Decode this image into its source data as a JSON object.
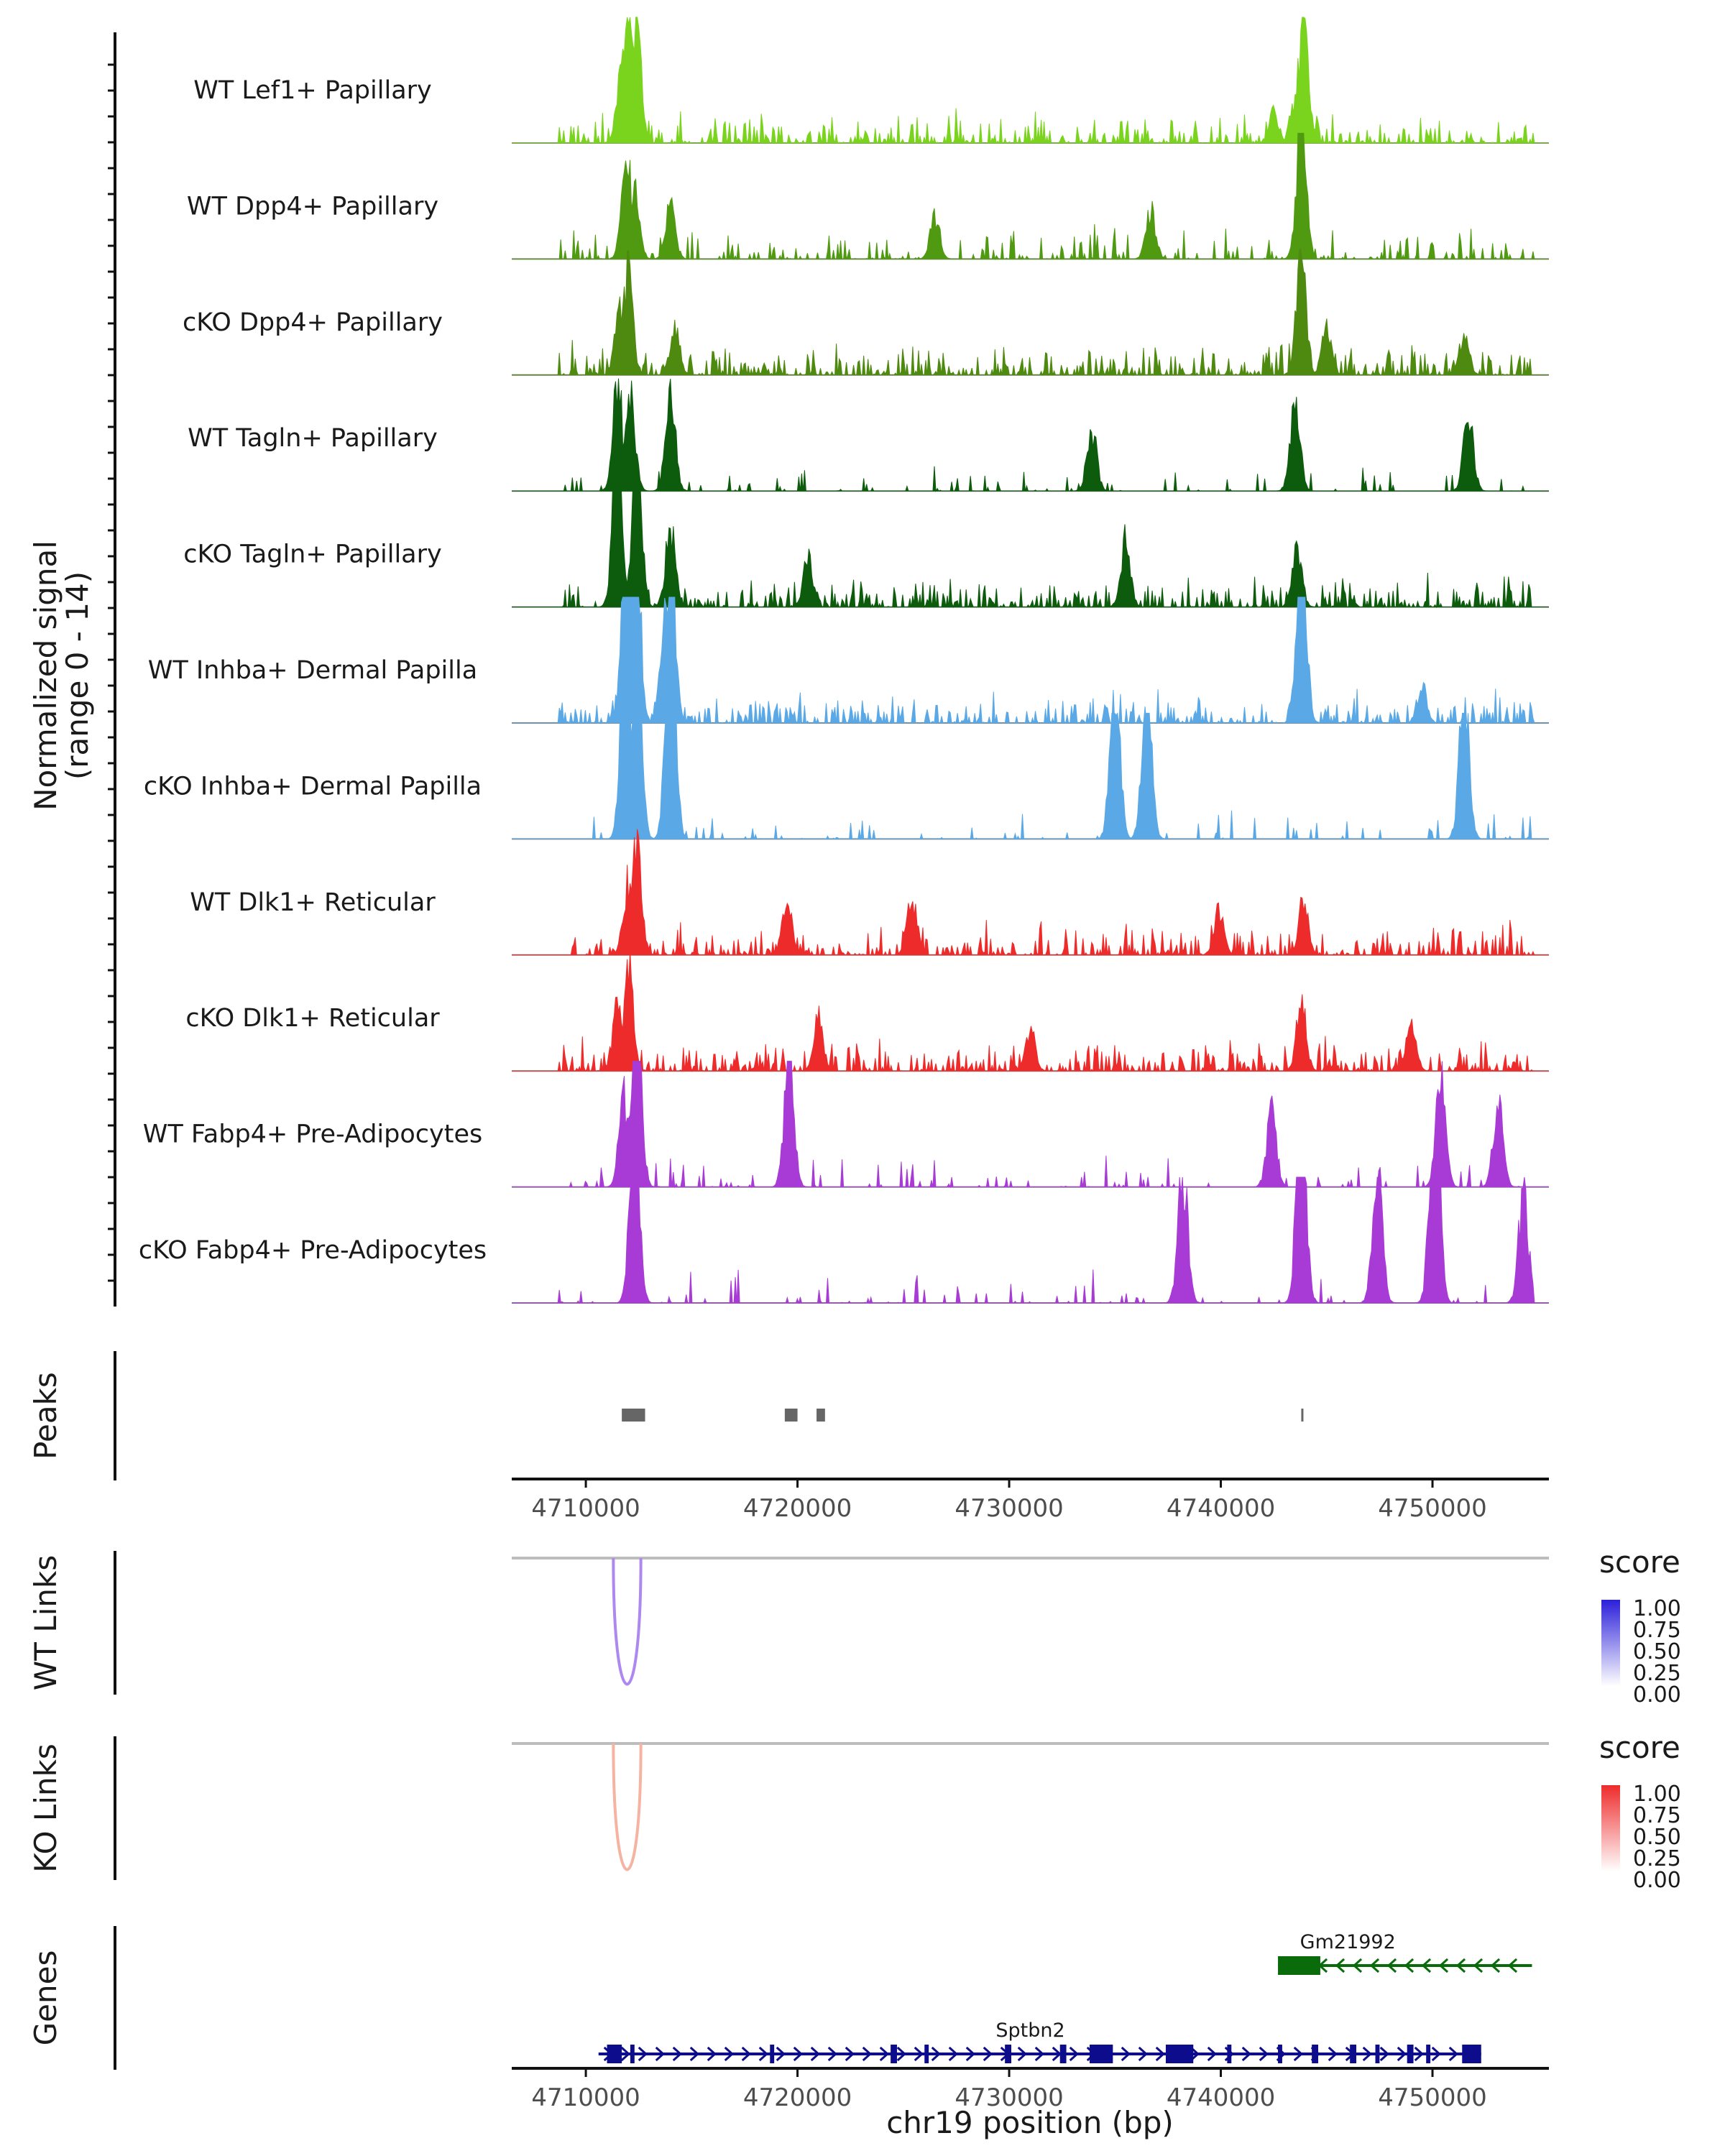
{
  "chart_data": {
    "type": "area",
    "title": "",
    "xlabel": "chr19 position (bp)",
    "ylabel": "Normalized signal",
    "ylabel_range": "(range 0 - 14)",
    "xlim": [
      4706500,
      4755500
    ],
    "x_ticks": [
      4710000,
      4720000,
      4730000,
      4740000,
      4750000
    ],
    "x_tick_labels": [
      "4710000",
      "4720000",
      "4730000",
      "4740000",
      "4750000"
    ],
    "y_range": [
      0,
      14
    ],
    "tracks": [
      {
        "name": "WT Lef1+ Papillary",
        "color": "#7ad31c",
        "style": "dense",
        "peaks": [
          [
            4712000,
            3.0
          ],
          [
            4712400,
            2.2
          ],
          [
            4711700,
            1.6
          ],
          [
            4743900,
            2.4
          ],
          [
            4743500,
            0.8
          ],
          [
            4742500,
            0.6
          ]
        ]
      },
      {
        "name": "WT Dpp4+ Papillary",
        "color": "#4f9a10",
        "style": "medium",
        "peaks": [
          [
            4711900,
            2.1
          ],
          [
            4712300,
            1.4
          ],
          [
            4743800,
            2.7
          ],
          [
            4714000,
            1.0
          ],
          [
            4726500,
            0.8
          ],
          [
            4736700,
            0.9
          ]
        ]
      },
      {
        "name": "cKO Dpp4+ Papillary",
        "color": "#4f8a10",
        "style": "dense",
        "peaks": [
          [
            4712000,
            1.9
          ],
          [
            4711600,
            1.2
          ],
          [
            4743800,
            2.3
          ],
          [
            4714200,
            0.9
          ],
          [
            4745000,
            0.9
          ],
          [
            4751500,
            0.8
          ]
        ]
      },
      {
        "name": "WT Tagln+ Papillary",
        "color": "#0d5c0d",
        "style": "sparse",
        "peaks": [
          [
            4711500,
            2.1
          ],
          [
            4712100,
            1.8
          ],
          [
            4714000,
            1.9
          ],
          [
            4743500,
            1.8
          ],
          [
            4733900,
            1.2
          ],
          [
            4751700,
            1.5
          ]
        ]
      },
      {
        "name": "cKO Tagln+ Papillary",
        "color": "#0d5c0d",
        "style": "dense",
        "peaks": [
          [
            4711500,
            3.2
          ],
          [
            4712400,
            3.0
          ],
          [
            4714000,
            1.5
          ],
          [
            4735500,
            1.3
          ],
          [
            4743600,
            1.1
          ],
          [
            4720500,
            0.9
          ]
        ]
      },
      {
        "name": "WT Inhba+ Dermal Papilla",
        "color": "#5aa9e6",
        "style": "dense",
        "peaks": [
          [
            4712000,
            7.5
          ],
          [
            4712300,
            5.0
          ],
          [
            4714000,
            3.3
          ],
          [
            4743800,
            3.8
          ],
          [
            4713700,
            2.0
          ],
          [
            4749500,
            0.7
          ]
        ]
      },
      {
        "name": "cKO Inhba+ Dermal Papilla",
        "color": "#5aa9e6",
        "style": "sparse",
        "peaks": [
          [
            4711900,
            4.5
          ],
          [
            4712400,
            3.5
          ],
          [
            4714000,
            5.0
          ],
          [
            4735000,
            3.2
          ],
          [
            4736500,
            2.9
          ],
          [
            4751500,
            2.9
          ]
        ]
      },
      {
        "name": "WT Dlk1+ Reticular",
        "color": "#ee2b2b",
        "style": "dense",
        "peaks": [
          [
            4712400,
            2.3
          ],
          [
            4712000,
            1.4
          ],
          [
            4719500,
            1.1
          ],
          [
            4725400,
            1.2
          ],
          [
            4743900,
            1.0
          ],
          [
            4739900,
            0.9
          ]
        ]
      },
      {
        "name": "cKO Dlk1+ Reticular",
        "color": "#ee2b2b",
        "style": "dense",
        "peaks": [
          [
            4712000,
            2.0
          ],
          [
            4711500,
            1.3
          ],
          [
            4743800,
            1.3
          ],
          [
            4721000,
            1.0
          ],
          [
            4731000,
            0.8
          ],
          [
            4749000,
            0.9
          ]
        ]
      },
      {
        "name": "WT Fabp4+ Pre-Adipocytes",
        "color": "#a83ad6",
        "style": "sparse",
        "peaks": [
          [
            4712400,
            3.4
          ],
          [
            4711800,
            1.8
          ],
          [
            4719600,
            2.5
          ],
          [
            4750400,
            2.1
          ],
          [
            4742400,
            1.4
          ],
          [
            4753100,
            1.6
          ]
        ]
      },
      {
        "name": "cKO Fabp4+ Pre-Adipocytes",
        "color": "#a83ad6",
        "style": "sparse",
        "peaks": [
          [
            4712300,
            3.5
          ],
          [
            4743800,
            3.9
          ],
          [
            4750100,
            4.3
          ],
          [
            4747400,
            2.7
          ],
          [
            4738200,
            2.6
          ],
          [
            4754300,
            2.1
          ]
        ]
      }
    ],
    "peaks_track": {
      "label": "Peaks",
      "color": "#666666",
      "regions": [
        [
          4711700,
          4712800
        ],
        [
          4719400,
          4720000
        ],
        [
          4720900,
          4721300
        ],
        [
          4743800,
          4743850
        ]
      ]
    },
    "links": [
      {
        "label": "WT Links",
        "start": 4711300,
        "end": 4712600,
        "score": 0.45,
        "legend_title": "score",
        "legend_ticks": [
          "1.00",
          "0.75",
          "0.50",
          "0.25",
          "0.00"
        ],
        "color_low": "#ffffff",
        "color_high": "#2b1fd9",
        "arc_color": "#ae88f0"
      },
      {
        "label": "KO Links",
        "start": 4711300,
        "end": 4712600,
        "score": 0.32,
        "legend_title": "score",
        "legend_ticks": [
          "1.00",
          "0.75",
          "0.50",
          "0.25",
          "0.00"
        ],
        "color_low": "#ffffff",
        "color_high": "#ee2b2b",
        "arc_color": "#f5b3a2"
      }
    ],
    "genes": {
      "label": "Genes",
      "items": [
        {
          "name": "Gm21992",
          "start": 4742700,
          "end": 4754700,
          "strand": "-",
          "color": "#0a6b0a",
          "exons": [
            [
              4742700,
              4744700
            ]
          ]
        },
        {
          "name": "Sptbn2",
          "start": 4710600,
          "end": 4752300,
          "strand": "+",
          "color": "#0c0c8c",
          "exons": [
            [
              4711000,
              4711700
            ],
            [
              4712100,
              4712300
            ],
            [
              4718700,
              4718900
            ],
            [
              4724400,
              4724700
            ],
            [
              4726000,
              4726200
            ],
            [
              4729800,
              4730100
            ],
            [
              4732400,
              4732700
            ],
            [
              4733800,
              4734900
            ],
            [
              4737400,
              4738700
            ],
            [
              4740300,
              4740500
            ],
            [
              4742700,
              4742900
            ],
            [
              4744300,
              4744600
            ],
            [
              4746100,
              4746400
            ],
            [
              4747300,
              4747500
            ],
            [
              4748800,
              4749100
            ],
            [
              4749700,
              4749900
            ],
            [
              4751400,
              4752300
            ]
          ]
        }
      ]
    }
  }
}
